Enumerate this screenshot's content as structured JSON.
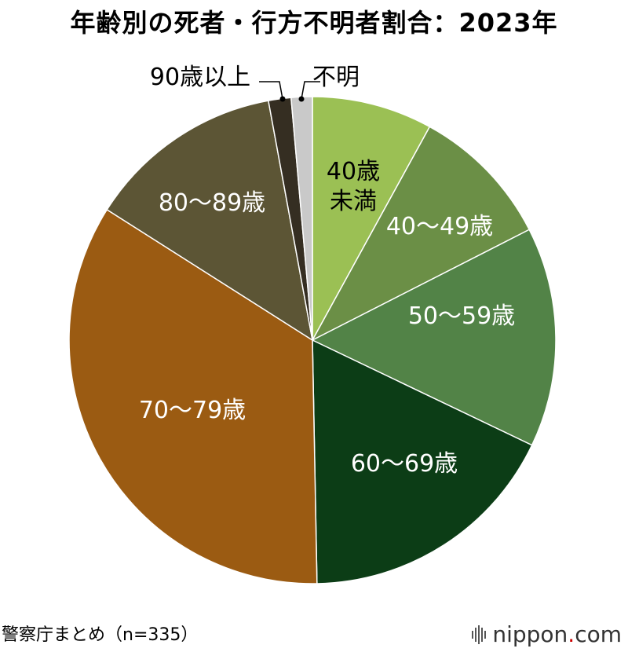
{
  "title": "年齢別の死者・行方不明者割合：2023年",
  "source": "警察庁まとめ（n=335）",
  "logo": {
    "name": "nippon",
    "dot": ".",
    "suffix": "com"
  },
  "chart_data": {
    "type": "pie",
    "title": "年齢別の死者・行方不明者割合：2023年",
    "start": "12 o'clock",
    "direction": "clockwise",
    "slices": [
      {
        "label": "40歳未満",
        "label_lines": [
          "40歳",
          "未満"
        ],
        "value": 8.0,
        "color": "#9bc054",
        "label_color": "#000000"
      },
      {
        "label": "40〜49歳",
        "value": 9.5,
        "color": "#6b8f46",
        "label_color": "#ffffff"
      },
      {
        "label": "50〜59歳",
        "value": 14.6,
        "color": "#528347",
        "label_color": "#ffffff"
      },
      {
        "label": "60〜69歳",
        "value": 17.6,
        "color": "#0c3d16",
        "label_color": "#ffffff"
      },
      {
        "label": "70〜79歳",
        "value": 34.3,
        "color": "#9b5b12",
        "label_color": "#ffffff"
      },
      {
        "label": "80〜89歳",
        "value": 13.1,
        "color": "#5c5535",
        "label_color": "#ffffff"
      },
      {
        "label": "90歳以上",
        "value": 1.5,
        "color": "#352e22",
        "label_color": "#000000",
        "external": true
      },
      {
        "label": "不明",
        "value": 1.4,
        "color": "#c9c9c9",
        "label_color": "#000000",
        "external": true
      }
    ]
  }
}
